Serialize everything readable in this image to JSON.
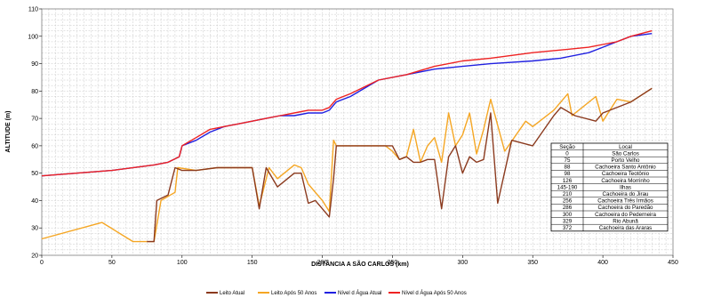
{
  "chart_data": {
    "type": "line",
    "xlabel": "DISTÂNCIA A SÃO CARLOS (km)",
    "ylabel": "ALTITUDE (m)",
    "xlim": [
      0,
      450
    ],
    "ylim": [
      20,
      110
    ],
    "x_ticks": [
      0,
      50,
      100,
      150,
      200,
      250,
      300,
      350,
      400,
      450
    ],
    "y_ticks": [
      20,
      30,
      40,
      50,
      60,
      70,
      80,
      90,
      100,
      110
    ],
    "grid": true,
    "legend_position": "bottom",
    "series": [
      {
        "name": "Leito Atual",
        "color": "#8b3a1e",
        "points": [
          [
            75,
            25
          ],
          [
            80,
            25
          ],
          [
            82,
            40
          ],
          [
            90,
            42
          ],
          [
            95,
            52
          ],
          [
            100,
            51
          ],
          [
            110,
            51
          ],
          [
            125,
            52
          ],
          [
            150,
            52
          ],
          [
            155,
            37
          ],
          [
            160,
            52
          ],
          [
            168,
            45
          ],
          [
            180,
            50
          ],
          [
            185,
            50
          ],
          [
            190,
            39
          ],
          [
            195,
            40
          ],
          [
            200,
            37
          ],
          [
            205,
            34
          ],
          [
            208,
            48
          ],
          [
            210,
            60
          ],
          [
            250,
            60
          ],
          [
            255,
            55
          ],
          [
            260,
            56
          ],
          [
            265,
            54
          ],
          [
            270,
            54
          ],
          [
            275,
            55
          ],
          [
            280,
            55
          ],
          [
            285,
            37
          ],
          [
            290,
            56
          ],
          [
            295,
            60
          ],
          [
            300,
            50
          ],
          [
            305,
            56
          ],
          [
            310,
            54
          ],
          [
            315,
            55
          ],
          [
            320,
            72
          ],
          [
            325,
            39
          ],
          [
            335,
            62
          ],
          [
            350,
            60
          ],
          [
            365,
            71
          ],
          [
            370,
            74
          ],
          [
            380,
            71
          ],
          [
            395,
            69
          ],
          [
            400,
            72
          ],
          [
            420,
            76
          ],
          [
            435,
            81
          ]
        ]
      },
      {
        "name": "Leito Após 50 Anos",
        "color": "#f5a623",
        "points": [
          [
            0,
            26
          ],
          [
            43,
            32
          ],
          [
            65,
            25
          ],
          [
            80,
            25
          ],
          [
            85,
            40
          ],
          [
            95,
            43
          ],
          [
            97,
            52
          ],
          [
            110,
            51
          ],
          [
            125,
            52
          ],
          [
            150,
            52
          ],
          [
            155,
            38
          ],
          [
            162,
            52
          ],
          [
            168,
            48
          ],
          [
            180,
            53
          ],
          [
            185,
            52
          ],
          [
            190,
            46
          ],
          [
            200,
            40
          ],
          [
            205,
            36
          ],
          [
            208,
            62
          ],
          [
            210,
            60
          ],
          [
            245,
            60
          ],
          [
            250,
            58
          ],
          [
            255,
            55
          ],
          [
            260,
            56
          ],
          [
            265,
            66
          ],
          [
            270,
            54
          ],
          [
            275,
            60
          ],
          [
            280,
            63
          ],
          [
            285,
            54
          ],
          [
            290,
            72
          ],
          [
            295,
            60
          ],
          [
            300,
            64
          ],
          [
            305,
            72
          ],
          [
            310,
            57
          ],
          [
            315,
            66
          ],
          [
            320,
            77
          ],
          [
            330,
            58
          ],
          [
            345,
            69
          ],
          [
            350,
            67
          ],
          [
            365,
            73
          ],
          [
            375,
            79
          ],
          [
            378,
            71
          ],
          [
            395,
            78
          ],
          [
            400,
            69
          ],
          [
            410,
            77
          ],
          [
            420,
            76
          ],
          [
            435,
            81
          ]
        ]
      },
      {
        "name": "Nível d Água Atual",
        "color": "#2020e0",
        "points": [
          [
            0,
            49
          ],
          [
            50,
            51
          ],
          [
            80,
            53
          ],
          [
            90,
            54
          ],
          [
            98,
            56
          ],
          [
            100,
            60
          ],
          [
            110,
            62
          ],
          [
            120,
            65
          ],
          [
            130,
            67
          ],
          [
            140,
            68
          ],
          [
            150,
            69
          ],
          [
            160,
            70
          ],
          [
            170,
            71
          ],
          [
            180,
            71
          ],
          [
            190,
            72
          ],
          [
            200,
            72
          ],
          [
            205,
            73
          ],
          [
            210,
            76
          ],
          [
            220,
            78
          ],
          [
            240,
            84
          ],
          [
            260,
            86
          ],
          [
            280,
            88
          ],
          [
            300,
            89
          ],
          [
            320,
            90
          ],
          [
            350,
            91
          ],
          [
            370,
            92
          ],
          [
            390,
            94
          ],
          [
            400,
            96
          ],
          [
            410,
            98
          ],
          [
            420,
            100
          ],
          [
            435,
            101
          ]
        ]
      },
      {
        "name": "Nível d Água Após 50 Anos",
        "color": "#ee2222",
        "points": [
          [
            0,
            49
          ],
          [
            50,
            51
          ],
          [
            80,
            53
          ],
          [
            90,
            54
          ],
          [
            98,
            56
          ],
          [
            100,
            60
          ],
          [
            110,
            63
          ],
          [
            120,
            66
          ],
          [
            130,
            67
          ],
          [
            140,
            68
          ],
          [
            150,
            69
          ],
          [
            160,
            70
          ],
          [
            170,
            71
          ],
          [
            180,
            72
          ],
          [
            190,
            73
          ],
          [
            200,
            73
          ],
          [
            205,
            74
          ],
          [
            210,
            77
          ],
          [
            220,
            79
          ],
          [
            240,
            84
          ],
          [
            260,
            86
          ],
          [
            280,
            89
          ],
          [
            300,
            91
          ],
          [
            320,
            92
          ],
          [
            350,
            94
          ],
          [
            370,
            95
          ],
          [
            390,
            96
          ],
          [
            400,
            97
          ],
          [
            410,
            98
          ],
          [
            420,
            100
          ],
          [
            435,
            102
          ]
        ]
      }
    ],
    "table": {
      "headers": [
        "Seção",
        "Local"
      ],
      "rows": [
        [
          "0",
          "São Carlos"
        ],
        [
          "75",
          "Porto Velho"
        ],
        [
          "88",
          "Cachoeira Santo Antônio"
        ],
        [
          "98",
          "Cachoeira Teotônio"
        ],
        [
          "126",
          "Cachoeira Morrinho"
        ],
        [
          "145-190",
          "Ilhas"
        ],
        [
          "210",
          "Cachoeira do Jirau"
        ],
        [
          "256",
          "Cachoeira Três Irmãos"
        ],
        [
          "286",
          "Cachoeira do Paredão"
        ],
        [
          "300",
          "Cachoeira do Pederneira"
        ],
        [
          "329",
          "Rio Abunã"
        ],
        [
          "372",
          "Cachoeira das Araras"
        ]
      ]
    }
  }
}
